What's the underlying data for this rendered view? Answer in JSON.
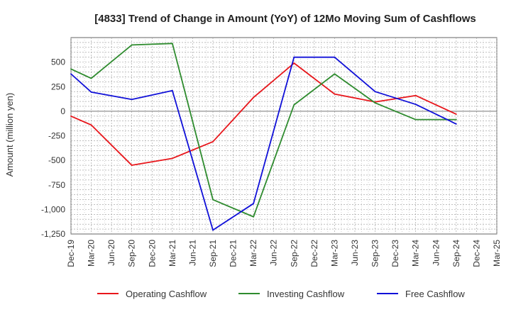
{
  "chart_data": {
    "type": "line",
    "title": "[4833]  Trend of Change in Amount (YoY) of 12Mo Moving Sum of Cashflows",
    "xlabel": "",
    "ylabel": "Amount (million yen)",
    "categories": [
      "Dec-19",
      "Mar-20",
      "Jun-20",
      "Sep-20",
      "Dec-20",
      "Mar-21",
      "Jun-21",
      "Sep-21",
      "Dec-21",
      "Mar-22",
      "Jun-22",
      "Sep-22",
      "Dec-22",
      "Mar-23",
      "Jun-23",
      "Sep-23",
      "Dec-23",
      "Mar-24",
      "Jun-24",
      "Sep-24",
      "Dec-24",
      "Mar-25"
    ],
    "ylim": [
      -1250,
      750
    ],
    "yticks": [
      -1250,
      -1000,
      -750,
      -500,
      -250,
      0,
      250,
      500
    ],
    "ytick_labels": [
      "-1,250",
      "-1,000",
      "-750",
      "-500",
      "-250",
      "0",
      "250",
      "500"
    ],
    "grid": true,
    "legend_position": "bottom",
    "series": [
      {
        "name": "Operating Cashflow",
        "color": "#e8161b",
        "points": [
          [
            0,
            -50
          ],
          [
            1,
            -140
          ],
          [
            3,
            -550
          ],
          [
            5,
            -480
          ],
          [
            7,
            -310
          ],
          [
            9,
            140
          ],
          [
            11,
            490
          ],
          [
            13,
            175
          ],
          [
            15,
            95
          ],
          [
            17,
            160
          ],
          [
            19,
            -30
          ]
        ]
      },
      {
        "name": "Investing Cashflow",
        "color": "#2e8b2e",
        "points": [
          [
            0,
            430
          ],
          [
            1,
            335
          ],
          [
            3,
            675
          ],
          [
            5,
            690
          ],
          [
            7,
            -900
          ],
          [
            9,
            -1075
          ],
          [
            11,
            65
          ],
          [
            13,
            380
          ],
          [
            15,
            85
          ],
          [
            17,
            -85
          ],
          [
            19,
            -85
          ]
        ]
      },
      {
        "name": "Free Cashflow",
        "color": "#1010d8",
        "points": [
          [
            0,
            380
          ],
          [
            1,
            195
          ],
          [
            3,
            120
          ],
          [
            5,
            210
          ],
          [
            7,
            -1210
          ],
          [
            9,
            -940
          ],
          [
            11,
            550
          ],
          [
            13,
            550
          ],
          [
            15,
            200
          ],
          [
            17,
            70
          ],
          [
            19,
            -130
          ]
        ]
      }
    ]
  }
}
